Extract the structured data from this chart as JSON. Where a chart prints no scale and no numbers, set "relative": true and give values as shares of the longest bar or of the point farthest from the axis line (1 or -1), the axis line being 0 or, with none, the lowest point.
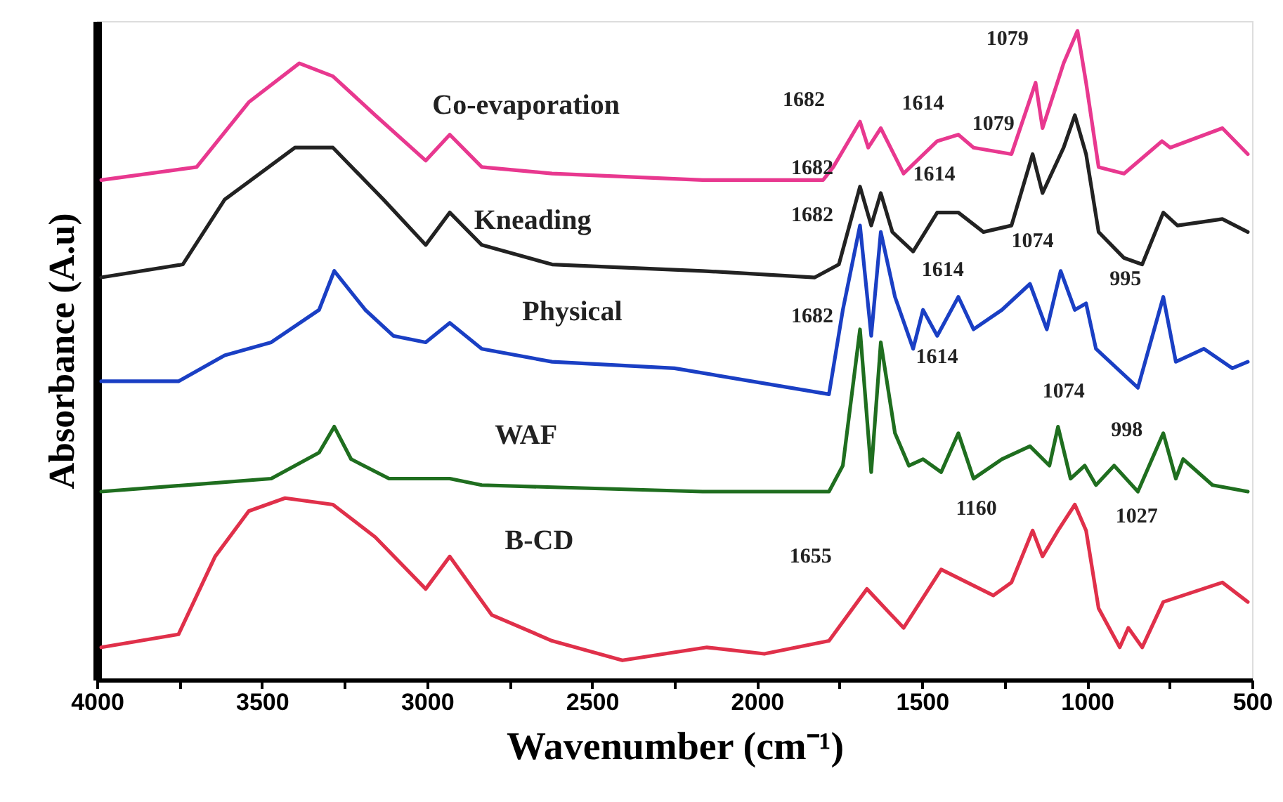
{
  "chart_data": {
    "type": "line",
    "relative": true,
    "xlabel": "Wavenumber (cm⁻¹)",
    "ylabel": "Absorbance (A.u)",
    "xlim": [
      4000,
      500
    ],
    "xticks": [
      4000,
      {
        "value": 3750,
        "label": null
      },
      3500,
      {
        "value": 3250,
        "label": null
      },
      3000,
      {
        "value": 2750,
        "label": null
      },
      2500,
      {
        "value": 2250,
        "label": null
      },
      2000,
      {
        "value": 1750,
        "label": null
      },
      1500,
      {
        "value": 1250,
        "label": null
      },
      1000,
      {
        "value": 750,
        "label": null
      },
      500
    ],
    "tick_labels": "x",
    "legend": false,
    "grid": false,
    "marker": "none",
    "line_style": "solid",
    "series": [
      {
        "name": "Co-evaporation",
        "color": "#e8388f",
        "x": [
          3987,
          3698,
          3540,
          3387,
          3285,
          3157,
          3004,
          2931,
          2834,
          2621,
          2165,
          1800,
          1769,
          1688,
          1663,
          1625,
          1556,
          1454,
          1390,
          1344,
          1229,
          1156,
          1135,
          1071,
          1029,
          1003,
          965,
          888,
          773,
          748,
          590,
          513
        ],
        "values": [
          0.77,
          0.79,
          0.89,
          0.95,
          0.93,
          0.87,
          0.8,
          0.84,
          0.79,
          0.78,
          0.77,
          0.77,
          0.79,
          0.86,
          0.82,
          0.85,
          0.78,
          0.83,
          0.84,
          0.82,
          0.81,
          0.92,
          0.85,
          0.95,
          1.0,
          0.92,
          0.79,
          0.78,
          0.83,
          0.82,
          0.85,
          0.81
        ]
      },
      {
        "name": "Kneading",
        "color": "#222222",
        "x": [
          3987,
          3740,
          3613,
          3400,
          3285,
          3132,
          3004,
          2931,
          2834,
          2621,
          2165,
          1825,
          1752,
          1688,
          1654,
          1625,
          1590,
          1527,
          1454,
          1390,
          1314,
          1229,
          1165,
          1135,
          1071,
          1037,
          1003,
          965,
          888,
          833,
          769,
          726,
          590,
          513
        ],
        "values": [
          0.62,
          0.64,
          0.74,
          0.82,
          0.82,
          0.74,
          0.67,
          0.72,
          0.67,
          0.64,
          0.63,
          0.62,
          0.64,
          0.76,
          0.7,
          0.75,
          0.69,
          0.66,
          0.72,
          0.72,
          0.69,
          0.7,
          0.81,
          0.75,
          0.82,
          0.87,
          0.81,
          0.69,
          0.65,
          0.64,
          0.72,
          0.7,
          0.71,
          0.69
        ]
      },
      {
        "name": "Physical",
        "color": "#1a3fc4",
        "x": [
          3987,
          3753,
          3613,
          3472,
          3327,
          3281,
          3187,
          3102,
          3004,
          2931,
          2834,
          2621,
          2250,
          1782,
          1740,
          1688,
          1654,
          1625,
          1582,
          1527,
          1497,
          1454,
          1390,
          1344,
          1258,
          1173,
          1122,
          1080,
          1037,
          1003,
          973,
          846,
          769,
          731,
          646,
          560,
          513
        ],
        "values": [
          0.46,
          0.46,
          0.5,
          0.52,
          0.57,
          0.63,
          0.57,
          0.53,
          0.52,
          0.55,
          0.51,
          0.49,
          0.48,
          0.44,
          0.57,
          0.7,
          0.53,
          0.69,
          0.59,
          0.51,
          0.57,
          0.53,
          0.59,
          0.54,
          0.57,
          0.61,
          0.54,
          0.63,
          0.57,
          0.58,
          0.51,
          0.45,
          0.59,
          0.49,
          0.51,
          0.48,
          0.49
        ]
      },
      {
        "name": "WAF",
        "color": "#1f6e1f",
        "x": [
          3987,
          3472,
          3327,
          3281,
          3230,
          3115,
          3004,
          2931,
          2834,
          2165,
          1782,
          1740,
          1688,
          1654,
          1625,
          1582,
          1540,
          1497,
          1442,
          1390,
          1344,
          1258,
          1173,
          1114,
          1088,
          1050,
          1007,
          973,
          918,
          846,
          769,
          731,
          709,
          620,
          513
        ],
        "values": [
          0.29,
          0.31,
          0.35,
          0.39,
          0.34,
          0.31,
          0.31,
          0.31,
          0.3,
          0.29,
          0.29,
          0.33,
          0.54,
          0.32,
          0.52,
          0.38,
          0.33,
          0.34,
          0.32,
          0.38,
          0.31,
          0.34,
          0.36,
          0.33,
          0.39,
          0.31,
          0.33,
          0.3,
          0.33,
          0.29,
          0.38,
          0.31,
          0.34,
          0.3,
          0.29
        ]
      },
      {
        "name": "B-CD",
        "color": "#e0304a",
        "x": [
          3987,
          3753,
          3642,
          3540,
          3430,
          3285,
          3157,
          3004,
          2931,
          2804,
          2621,
          2408,
          2152,
          1978,
          1782,
          1667,
          1556,
          1442,
          1284,
          1229,
          1165,
          1135,
          1088,
          1037,
          1003,
          965,
          901,
          875,
          833,
          769,
          590,
          513
        ],
        "values": [
          0.05,
          0.07,
          0.19,
          0.26,
          0.28,
          0.27,
          0.22,
          0.14,
          0.19,
          0.1,
          0.06,
          0.03,
          0.05,
          0.04,
          0.06,
          0.14,
          0.08,
          0.17,
          0.13,
          0.15,
          0.23,
          0.19,
          0.23,
          0.27,
          0.23,
          0.11,
          0.05,
          0.08,
          0.05,
          0.12,
          0.15,
          0.12
        ]
      }
    ],
    "annotations": [
      {
        "text": "1682",
        "x": 1688,
        "y": 0.86
      },
      {
        "text": "1614",
        "x": 1625,
        "y": 0.85
      },
      {
        "text": "1079",
        "x": 1071,
        "y": 0.95
      },
      {
        "text": "1682",
        "x": 1688,
        "y": 0.76
      },
      {
        "text": "1614",
        "x": 1625,
        "y": 0.75
      },
      {
        "text": "1079",
        "x": 1165,
        "y": 0.81
      },
      {
        "text": "1682",
        "x": 1688,
        "y": 0.7
      },
      {
        "text": "1614",
        "x": 1582,
        "y": 0.59
      },
      {
        "text": "1074",
        "x": 1080,
        "y": 0.63
      },
      {
        "text": "995",
        "x": 1003,
        "y": 0.58
      },
      {
        "text": "1682",
        "x": 1688,
        "y": 0.54
      },
      {
        "text": "1614",
        "x": 1625,
        "y": 0.52
      },
      {
        "text": "1074",
        "x": 1088,
        "y": 0.39
      },
      {
        "text": "998",
        "x": 1007,
        "y": 0.33
      },
      {
        "text": "1655",
        "x": 1667,
        "y": 0.14
      },
      {
        "text": "1160",
        "x": 1165,
        "y": 0.23
      },
      {
        "text": "1027",
        "x": 1037,
        "y": 0.27
      }
    ]
  }
}
